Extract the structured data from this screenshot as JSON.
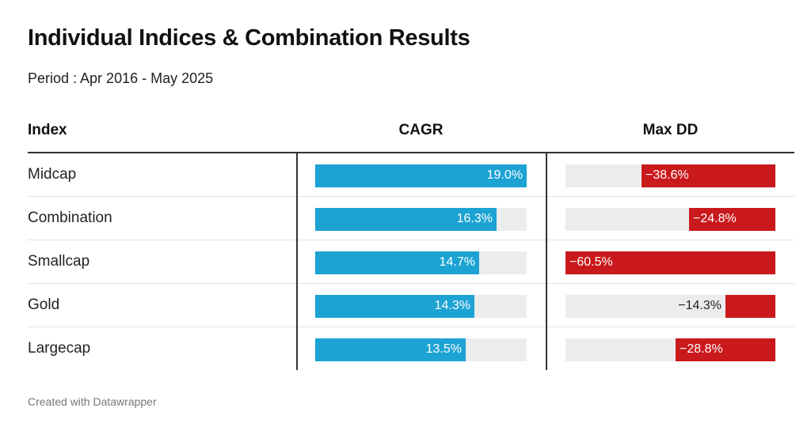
{
  "title": "Individual Indices & Combination Results",
  "subtitle": "Period : Apr 2016 - May 2025",
  "footer": "Created with Datawrapper",
  "colors": {
    "cagr_bar": "#1ca3d3",
    "dd_bar": "#c9191c",
    "track": "#ececec"
  },
  "chart_data": {
    "type": "table",
    "title": "Individual Indices & Combination Results",
    "subtitle": "Period : Apr 2016 - May 2025",
    "columns": [
      "Index",
      "CAGR",
      "Max DD"
    ],
    "rows": [
      {
        "index": "Midcap",
        "cagr": 19.0,
        "cagr_label": "19.0%",
        "max_dd": -38.6,
        "max_dd_label": "−38.6%"
      },
      {
        "index": "Combination",
        "cagr": 16.3,
        "cagr_label": "16.3%",
        "max_dd": -24.8,
        "max_dd_label": "−24.8%"
      },
      {
        "index": "Smallcap",
        "cagr": 14.7,
        "cagr_label": "14.7%",
        "max_dd": -60.5,
        "max_dd_label": "−60.5%"
      },
      {
        "index": "Gold",
        "cagr": 14.3,
        "cagr_label": "14.3%",
        "max_dd": -14.3,
        "max_dd_label": "−14.3%"
      },
      {
        "index": "Largecap",
        "cagr": 13.5,
        "cagr_label": "13.5%",
        "max_dd": -28.8,
        "max_dd_label": "−28.8%"
      }
    ],
    "cagr_range": [
      0,
      19.0
    ],
    "max_dd_range": [
      -60.5,
      0
    ]
  }
}
